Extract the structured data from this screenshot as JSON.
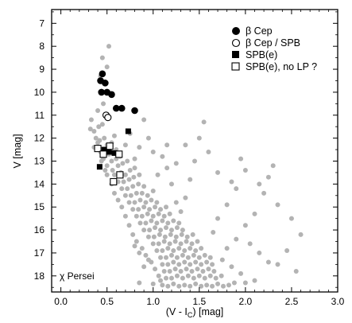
{
  "chart_data": {
    "type": "scatter",
    "xlabel": "(V - I",
    "xlabel_sub": "C",
    "xlabel_rest": ") [mag]",
    "ylabel": "V [mag]",
    "annotation": "χ Persei",
    "xlim": [
      -0.1,
      3.0
    ],
    "ylim": [
      18.7,
      6.4
    ],
    "y_inverted": true,
    "x_ticks": [
      "0.0",
      "0.5",
      "1.0",
      "1.5",
      "2.0",
      "2.5",
      "3.0"
    ],
    "y_ticks": [
      "7",
      "8",
      "9",
      "10",
      "11",
      "12",
      "13",
      "14",
      "15",
      "16",
      "17",
      "18"
    ],
    "grid": false,
    "legend_position": "top-right",
    "colors": {
      "field": "#b3b3b3",
      "marker": "#000000"
    },
    "series": [
      {
        "name": "",
        "marker": "gray-circle",
        "points": [
          [
            0.52,
            8.0
          ],
          [
            0.45,
            8.5
          ],
          [
            0.5,
            8.9
          ],
          [
            0.43,
            9.3
          ],
          [
            0.46,
            10.5
          ],
          [
            0.4,
            10.8
          ],
          [
            0.33,
            11.2
          ],
          [
            0.32,
            11.6
          ],
          [
            0.36,
            11.7
          ],
          [
            0.41,
            11.5
          ],
          [
            0.45,
            11.4
          ],
          [
            0.38,
            12.0
          ],
          [
            0.42,
            12.1
          ],
          [
            0.47,
            12.0
          ],
          [
            0.36,
            12.4
          ],
          [
            0.5,
            12.3
          ],
          [
            0.55,
            12.2
          ],
          [
            0.58,
            11.9
          ],
          [
            0.6,
            12.5
          ],
          [
            0.52,
            12.7
          ],
          [
            0.46,
            12.9
          ],
          [
            0.55,
            13.0
          ],
          [
            0.6,
            12.9
          ],
          [
            0.64,
            12.8
          ],
          [
            0.5,
            13.2
          ],
          [
            0.56,
            13.4
          ],
          [
            0.62,
            13.2
          ],
          [
            0.67,
            13.1
          ],
          [
            0.72,
            13.0
          ],
          [
            0.58,
            13.6
          ],
          [
            0.65,
            13.5
          ],
          [
            0.7,
            13.6
          ],
          [
            0.75,
            13.4
          ],
          [
            0.8,
            13.3
          ],
          [
            0.62,
            13.9
          ],
          [
            0.68,
            13.9
          ],
          [
            0.74,
            13.8
          ],
          [
            0.79,
            13.7
          ],
          [
            0.85,
            13.6
          ],
          [
            0.66,
            14.2
          ],
          [
            0.72,
            14.2
          ],
          [
            0.78,
            14.1
          ],
          [
            0.84,
            14.0
          ],
          [
            0.9,
            14.1
          ],
          [
            0.7,
            14.5
          ],
          [
            0.76,
            14.5
          ],
          [
            0.82,
            14.4
          ],
          [
            0.88,
            14.4
          ],
          [
            0.94,
            14.5
          ],
          [
            1.0,
            14.3
          ],
          [
            0.74,
            14.8
          ],
          [
            0.8,
            14.8
          ],
          [
            0.86,
            14.7
          ],
          [
            0.92,
            14.8
          ],
          [
            0.98,
            14.7
          ],
          [
            1.04,
            14.8
          ],
          [
            0.78,
            15.1
          ],
          [
            0.84,
            15.1
          ],
          [
            0.9,
            15.0
          ],
          [
            0.96,
            15.1
          ],
          [
            1.02,
            15.0
          ],
          [
            1.08,
            15.1
          ],
          [
            1.14,
            15.0
          ],
          [
            0.82,
            15.4
          ],
          [
            0.88,
            15.4
          ],
          [
            0.94,
            15.3
          ],
          [
            1.0,
            15.4
          ],
          [
            1.06,
            15.3
          ],
          [
            1.12,
            15.4
          ],
          [
            1.18,
            15.3
          ],
          [
            0.86,
            15.7
          ],
          [
            0.92,
            15.7
          ],
          [
            0.98,
            15.6
          ],
          [
            1.04,
            15.7
          ],
          [
            1.1,
            15.6
          ],
          [
            1.16,
            15.7
          ],
          [
            1.22,
            15.6
          ],
          [
            1.28,
            15.7
          ],
          [
            0.9,
            16.0
          ],
          [
            0.96,
            16.0
          ],
          [
            1.02,
            15.9
          ],
          [
            1.08,
            16.0
          ],
          [
            1.14,
            15.9
          ],
          [
            1.2,
            16.0
          ],
          [
            1.26,
            15.9
          ],
          [
            1.32,
            16.0
          ],
          [
            0.95,
            16.3
          ],
          [
            1.01,
            16.3
          ],
          [
            1.07,
            16.2
          ],
          [
            1.13,
            16.3
          ],
          [
            1.19,
            16.2
          ],
          [
            1.25,
            16.3
          ],
          [
            1.31,
            16.2
          ],
          [
            1.37,
            16.3
          ],
          [
            1.43,
            16.2
          ],
          [
            1.0,
            16.6
          ],
          [
            1.06,
            16.6
          ],
          [
            1.12,
            16.5
          ],
          [
            1.18,
            16.6
          ],
          [
            1.24,
            16.5
          ],
          [
            1.3,
            16.6
          ],
          [
            1.36,
            16.5
          ],
          [
            1.42,
            16.6
          ],
          [
            1.48,
            16.5
          ],
          [
            1.04,
            16.9
          ],
          [
            1.1,
            16.9
          ],
          [
            1.16,
            16.8
          ],
          [
            1.22,
            16.9
          ],
          [
            1.28,
            16.8
          ],
          [
            1.34,
            16.9
          ],
          [
            1.4,
            16.8
          ],
          [
            1.46,
            16.9
          ],
          [
            1.52,
            16.8
          ],
          [
            1.08,
            17.2
          ],
          [
            1.14,
            17.2
          ],
          [
            1.2,
            17.1
          ],
          [
            1.26,
            17.2
          ],
          [
            1.32,
            17.1
          ],
          [
            1.38,
            17.2
          ],
          [
            1.44,
            17.1
          ],
          [
            1.5,
            17.2
          ],
          [
            1.56,
            17.1
          ],
          [
            1.62,
            17.2
          ],
          [
            1.1,
            17.5
          ],
          [
            1.16,
            17.5
          ],
          [
            1.22,
            17.4
          ],
          [
            1.28,
            17.5
          ],
          [
            1.34,
            17.4
          ],
          [
            1.4,
            17.5
          ],
          [
            1.46,
            17.4
          ],
          [
            1.52,
            17.5
          ],
          [
            1.58,
            17.4
          ],
          [
            1.64,
            17.5
          ],
          [
            1.12,
            17.8
          ],
          [
            1.18,
            17.8
          ],
          [
            1.24,
            17.7
          ],
          [
            1.3,
            17.8
          ],
          [
            1.36,
            17.7
          ],
          [
            1.42,
            17.8
          ],
          [
            1.48,
            17.7
          ],
          [
            1.54,
            17.8
          ],
          [
            1.6,
            17.7
          ],
          [
            1.66,
            17.8
          ],
          [
            1.14,
            18.1
          ],
          [
            1.2,
            18.1
          ],
          [
            1.26,
            18.0
          ],
          [
            1.32,
            18.1
          ],
          [
            1.38,
            18.0
          ],
          [
            1.44,
            18.1
          ],
          [
            1.5,
            18.0
          ],
          [
            1.56,
            18.1
          ],
          [
            1.62,
            18.0
          ],
          [
            1.68,
            18.1
          ],
          [
            1.74,
            18.0
          ],
          [
            0.85,
            18.3
          ],
          [
            1.0,
            18.35
          ],
          [
            1.1,
            18.4
          ],
          [
            1.16,
            18.45
          ],
          [
            1.22,
            18.35
          ],
          [
            1.28,
            18.45
          ],
          [
            1.34,
            18.4
          ],
          [
            1.4,
            18.45
          ],
          [
            1.46,
            18.35
          ],
          [
            1.52,
            18.45
          ],
          [
            1.58,
            18.4
          ],
          [
            1.64,
            18.45
          ],
          [
            1.7,
            18.35
          ],
          [
            1.76,
            18.45
          ],
          [
            1.82,
            18.4
          ],
          [
            1.88,
            18.3
          ],
          [
            2.0,
            18.3
          ],
          [
            2.1,
            18.2
          ],
          [
            0.9,
            17.6
          ],
          [
            0.95,
            17.3
          ],
          [
            0.85,
            17.0
          ],
          [
            0.8,
            16.7
          ],
          [
            1.75,
            17.3
          ],
          [
            1.85,
            17.6
          ],
          [
            1.95,
            17.9
          ],
          [
            1.8,
            16.8
          ],
          [
            1.9,
            16.4
          ],
          [
            2.05,
            16.6
          ],
          [
            2.15,
            17.0
          ],
          [
            2.25,
            17.4
          ],
          [
            2.0,
            15.8
          ],
          [
            2.1,
            15.3
          ],
          [
            2.2,
            14.4
          ],
          [
            2.25,
            13.7
          ],
          [
            2.3,
            13.2
          ],
          [
            2.0,
            13.4
          ],
          [
            1.9,
            14.2
          ],
          [
            1.8,
            14.9
          ],
          [
            1.7,
            15.5
          ],
          [
            1.65,
            16.1
          ],
          [
            1.6,
            12.6
          ],
          [
            1.55,
            11.3
          ],
          [
            1.5,
            12.0
          ],
          [
            1.45,
            13.0
          ],
          [
            1.4,
            13.8
          ],
          [
            1.35,
            14.6
          ],
          [
            1.3,
            15.2
          ],
          [
            1.25,
            14.8
          ],
          [
            1.2,
            14.0
          ],
          [
            1.15,
            13.3
          ],
          [
            1.1,
            12.8
          ],
          [
            1.05,
            13.6
          ],
          [
            1.0,
            12.6
          ],
          [
            0.95,
            12.0
          ],
          [
            0.9,
            11.2
          ],
          [
            0.85,
            12.4
          ],
          [
            0.8,
            12.9
          ],
          [
            0.75,
            11.8
          ],
          [
            0.7,
            12.3
          ],
          [
            2.35,
            14.9
          ],
          [
            2.5,
            15.5
          ],
          [
            2.6,
            16.2
          ],
          [
            2.45,
            16.9
          ],
          [
            2.35,
            17.5
          ],
          [
            2.55,
            17.8
          ],
          [
            1.15,
            12.3
          ],
          [
            1.25,
            13.1
          ],
          [
            1.35,
            12.3
          ],
          [
            1.7,
            13.5
          ],
          [
            1.85,
            13.9
          ],
          [
            2.15,
            14.0
          ],
          [
            1.95,
            12.9
          ],
          [
            0.55,
            14.0
          ],
          [
            0.5,
            13.6
          ],
          [
            0.48,
            13.4
          ],
          [
            0.44,
            13.0
          ],
          [
            0.43,
            12.6
          ],
          [
            0.4,
            12.2
          ],
          [
            0.58,
            14.4
          ],
          [
            0.62,
            14.7
          ],
          [
            0.66,
            15.0
          ],
          [
            0.7,
            15.4
          ],
          [
            0.74,
            15.8
          ],
          [
            0.78,
            16.2
          ],
          [
            0.82,
            16.5
          ],
          [
            0.88,
            16.8
          ],
          [
            0.92,
            17.1
          ],
          [
            0.98,
            17.4
          ],
          [
            1.02,
            17.7
          ],
          [
            1.06,
            18.0
          ],
          [
            1.08,
            18.2
          ]
        ]
      },
      {
        "name": "β Cep",
        "marker": "filled-circle",
        "points": [
          [
            0.45,
            9.2
          ],
          [
            0.43,
            9.5
          ],
          [
            0.48,
            9.6
          ],
          [
            0.44,
            10.0
          ],
          [
            0.5,
            10.0
          ],
          [
            0.55,
            10.1
          ],
          [
            0.6,
            10.7
          ],
          [
            0.66,
            10.7
          ],
          [
            0.8,
            10.8
          ]
        ]
      },
      {
        "name": "β Cep / SPB",
        "marker": "open-circle",
        "points": [
          [
            0.49,
            11.0
          ],
          [
            0.51,
            11.1
          ]
        ]
      },
      {
        "name": "SPB(e)",
        "marker": "filled-square",
        "points": [
          [
            0.73,
            11.7
          ],
          [
            0.47,
            12.5
          ],
          [
            0.52,
            12.6
          ],
          [
            0.58,
            12.65
          ],
          [
            0.42,
            13.25
          ]
        ]
      },
      {
        "name": "SPB(e), no LP ?",
        "marker": "open-square",
        "points": [
          [
            0.4,
            12.45
          ],
          [
            0.53,
            12.35
          ],
          [
            0.63,
            12.7
          ],
          [
            0.46,
            12.7
          ],
          [
            0.64,
            13.6
          ],
          [
            0.57,
            13.9
          ]
        ]
      }
    ]
  }
}
